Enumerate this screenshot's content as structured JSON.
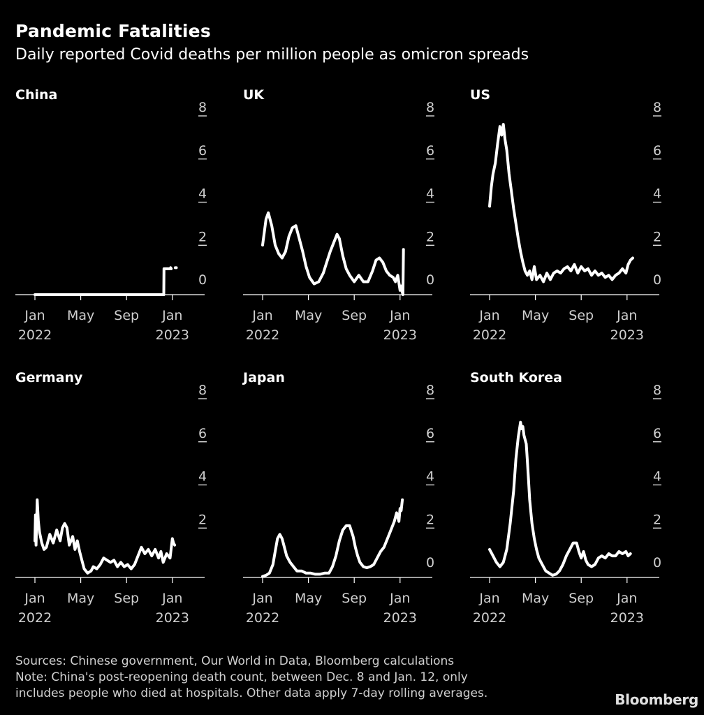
{
  "title": "Pandemic Fatalities",
  "subtitle": "Daily reported Covid deaths per million people as omicron spreads",
  "footer": {
    "sources": "Sources: Chinese government, Our World in Data, Bloomberg calculations",
    "note_line1": "Note: China's post-reopening death count, between Dec. 8 and Jan. 12, only",
    "note_line2": "includes people who died at hospitals. Other data apply 7-day rolling averages."
  },
  "brand": "Bloomberg",
  "colors": {
    "background": "#000000",
    "line": "#ffffff",
    "axis": "#ffffff",
    "tick_text": "#cfcfcf"
  },
  "chart_data": [
    {
      "type": "line",
      "title": "China",
      "xlabel": "",
      "ylabel": "",
      "ylim": [
        0,
        8
      ],
      "yticks": [
        "0",
        "2",
        "4",
        "6",
        "8"
      ],
      "xticks": [
        {
          "month": 0,
          "line1": "Jan",
          "line2": "2022"
        },
        {
          "month": 4,
          "line1": "May",
          "line2": ""
        },
        {
          "month": 8,
          "line1": "Sep",
          "line2": ""
        },
        {
          "month": 12,
          "line1": "Jan",
          "line2": "2023"
        }
      ],
      "series": [
        {
          "name": "China",
          "x": [
            0,
            11.25
          ],
          "y": [
            0,
            0
          ]
        },
        {
          "name": "China (post-reopening)",
          "x": [
            11.25,
            11.27,
            11.6,
            11.8,
            11.85,
            11.9
          ],
          "y": [
            0,
            1.2,
            1.2,
            1.2,
            1.25,
            1.2
          ]
        },
        {
          "name": "China (latest)",
          "x": [
            12.25,
            12.35
          ],
          "y": [
            1.25,
            1.25
          ]
        }
      ]
    },
    {
      "type": "line",
      "title": "UK",
      "xlabel": "",
      "ylabel": "",
      "ylim": [
        0,
        8
      ],
      "yticks": [
        "0",
        "2",
        "4",
        "6",
        "8"
      ],
      "xticks": [
        {
          "month": 0,
          "line1": "Jan",
          "line2": "2022"
        },
        {
          "month": 4,
          "line1": "May",
          "line2": ""
        },
        {
          "month": 8,
          "line1": "Sep",
          "line2": ""
        },
        {
          "month": 12,
          "line1": "Jan",
          "line2": "2023"
        }
      ],
      "series": [
        {
          "name": "UK",
          "x": [
            0,
            0.3,
            0.5,
            0.8,
            1.1,
            1.4,
            1.7,
            2.0,
            2.3,
            2.6,
            2.9,
            3.2,
            3.5,
            3.8,
            4.1,
            4.5,
            4.9,
            5.3,
            5.6,
            5.9,
            6.2,
            6.5,
            6.7,
            7.0,
            7.3,
            7.6,
            8.0,
            8.4,
            8.8,
            9.2,
            9.6,
            9.9,
            10.2,
            10.5,
            10.8,
            11.1,
            11.4,
            11.6,
            11.8,
            12.0,
            12.1,
            12.2,
            12.25,
            12.3
          ],
          "y": [
            2.3,
            3.5,
            3.8,
            3.2,
            2.3,
            1.9,
            1.7,
            2.0,
            2.7,
            3.1,
            3.2,
            2.6,
            2.0,
            1.3,
            0.8,
            0.5,
            0.6,
            1.0,
            1.5,
            2.0,
            2.4,
            2.8,
            2.6,
            1.8,
            1.2,
            0.9,
            0.6,
            0.9,
            0.6,
            0.6,
            1.1,
            1.6,
            1.7,
            1.5,
            1.1,
            0.9,
            0.8,
            0.6,
            0.9,
            0.2,
            0.4,
            0.1,
            0.0,
            2.1
          ]
        }
      ]
    },
    {
      "type": "line",
      "title": "US",
      "xlabel": "",
      "ylabel": "",
      "ylim": [
        0,
        8
      ],
      "yticks": [
        "0",
        "2",
        "4",
        "6",
        "8"
      ],
      "xticks": [
        {
          "month": 0,
          "line1": "Jan",
          "line2": "2022"
        },
        {
          "month": 4,
          "line1": "May",
          "line2": ""
        },
        {
          "month": 8,
          "line1": "Sep",
          "line2": ""
        },
        {
          "month": 12,
          "line1": "Jan",
          "line2": "2023"
        }
      ],
      "series": [
        {
          "name": "US",
          "x": [
            0,
            0.15,
            0.3,
            0.5,
            0.7,
            0.9,
            1.05,
            1.2,
            1.35,
            1.5,
            1.7,
            1.9,
            2.1,
            2.3,
            2.5,
            2.7,
            2.9,
            3.1,
            3.3,
            3.5,
            3.7,
            3.9,
            4.1,
            4.4,
            4.7,
            5.0,
            5.3,
            5.6,
            5.9,
            6.2,
            6.5,
            6.8,
            7.1,
            7.4,
            7.7,
            8.0,
            8.3,
            8.6,
            8.9,
            9.2,
            9.5,
            9.8,
            10.1,
            10.4,
            10.7,
            11.0,
            11.3,
            11.6,
            11.9,
            12.1,
            12.3,
            12.5
          ],
          "y": [
            4.1,
            5.0,
            5.6,
            6.1,
            7.0,
            7.8,
            7.4,
            7.9,
            7.2,
            6.7,
            5.6,
            4.8,
            4.0,
            3.3,
            2.6,
            2.0,
            1.5,
            1.1,
            0.9,
            1.1,
            0.7,
            1.3,
            0.7,
            0.9,
            0.6,
            1.0,
            0.7,
            1.0,
            1.1,
            1.0,
            1.2,
            1.3,
            1.1,
            1.4,
            1.0,
            1.3,
            1.1,
            1.2,
            0.9,
            1.1,
            0.9,
            1.0,
            0.8,
            0.9,
            0.7,
            0.9,
            1.0,
            1.2,
            1.0,
            1.4,
            1.6,
            1.7
          ]
        }
      ]
    },
    {
      "type": "line",
      "title": "Germany",
      "xlabel": "",
      "ylabel": "",
      "ylim": [
        0,
        8
      ],
      "yticks": [
        "2",
        "4",
        "6",
        "8"
      ],
      "xticks": [
        {
          "month": 0,
          "line1": "Jan",
          "line2": "2022"
        },
        {
          "month": 4,
          "line1": "May",
          "line2": ""
        },
        {
          "month": 8,
          "line1": "Sep",
          "line2": ""
        },
        {
          "month": 12,
          "line1": "Jan",
          "line2": "2023"
        }
      ],
      "series": [
        {
          "name": "Germany",
          "x": [
            0,
            0.05,
            0.1,
            0.2,
            0.3,
            0.4,
            0.6,
            0.8,
            1.0,
            1.3,
            1.6,
            1.9,
            2.2,
            2.4,
            2.6,
            2.8,
            3.0,
            3.3,
            3.5,
            3.7,
            3.9,
            4.1,
            4.3,
            4.6,
            4.9,
            5.1,
            5.4,
            5.7,
            6.0,
            6.3,
            6.6,
            6.9,
            7.2,
            7.5,
            7.8,
            8.1,
            8.4,
            8.7,
            9.0,
            9.3,
            9.6,
            9.9,
            10.2,
            10.5,
            10.8,
            11.0,
            11.2,
            11.5,
            11.8,
            12.0,
            12.1,
            12.2
          ],
          "y": [
            1.7,
            2.9,
            1.5,
            3.6,
            2.6,
            2.1,
            1.6,
            1.3,
            1.4,
            2.0,
            1.6,
            2.2,
            1.7,
            2.3,
            2.5,
            2.3,
            1.5,
            1.9,
            1.3,
            1.7,
            1.2,
            0.8,
            0.4,
            0.2,
            0.3,
            0.5,
            0.4,
            0.6,
            0.9,
            0.8,
            0.7,
            0.8,
            0.5,
            0.7,
            0.5,
            0.6,
            0.4,
            0.6,
            1.0,
            1.4,
            1.1,
            1.3,
            1.0,
            1.3,
            0.9,
            1.2,
            0.7,
            1.1,
            0.9,
            1.8,
            1.6,
            1.5
          ]
        }
      ]
    },
    {
      "type": "line",
      "title": "Japan",
      "xlabel": "",
      "ylabel": "",
      "ylim": [
        0,
        8
      ],
      "yticks": [
        "0",
        "2",
        "4",
        "6",
        "8"
      ],
      "xticks": [
        {
          "month": 0,
          "line1": "Jan",
          "line2": "2022"
        },
        {
          "month": 4,
          "line1": "May",
          "line2": ""
        },
        {
          "month": 8,
          "line1": "Sep",
          "line2": ""
        },
        {
          "month": 12,
          "line1": "Jan",
          "line2": "2023"
        }
      ],
      "series": [
        {
          "name": "Japan",
          "x": [
            0,
            0.3,
            0.6,
            0.9,
            1.1,
            1.3,
            1.5,
            1.7,
            1.9,
            2.1,
            2.4,
            2.7,
            3.0,
            3.4,
            3.8,
            4.2,
            4.6,
            5.0,
            5.4,
            5.8,
            6.1,
            6.4,
            6.7,
            7.0,
            7.3,
            7.6,
            7.9,
            8.1,
            8.3,
            8.5,
            8.8,
            9.1,
            9.4,
            9.7,
            10.0,
            10.3,
            10.6,
            10.9,
            11.2,
            11.5,
            11.7,
            11.9,
            12.0,
            12.1,
            12.2
          ],
          "y": [
            0.05,
            0.1,
            0.2,
            0.6,
            1.2,
            1.8,
            2.0,
            1.8,
            1.4,
            1.0,
            0.7,
            0.5,
            0.3,
            0.3,
            0.2,
            0.2,
            0.15,
            0.15,
            0.2,
            0.2,
            0.5,
            1.0,
            1.7,
            2.2,
            2.4,
            2.4,
            1.9,
            1.4,
            1.0,
            0.7,
            0.5,
            0.45,
            0.5,
            0.6,
            0.9,
            1.2,
            1.4,
            1.8,
            2.2,
            2.6,
            3.0,
            2.6,
            3.2,
            3.1,
            3.6
          ]
        }
      ]
    },
    {
      "type": "line",
      "title": "South Korea",
      "xlabel": "",
      "ylabel": "",
      "ylim": [
        0,
        8
      ],
      "yticks": [
        "0",
        "2",
        "4",
        "6",
        "8"
      ],
      "xticks": [
        {
          "month": 0,
          "line1": "Jan",
          "line2": "2022"
        },
        {
          "month": 4,
          "line1": "May",
          "line2": ""
        },
        {
          "month": 8,
          "line1": "Sep",
          "line2": ""
        },
        {
          "month": 12,
          "line1": "Jan",
          "line2": "2023"
        }
      ],
      "series": [
        {
          "name": "South Korea",
          "x": [
            0,
            0.3,
            0.6,
            0.9,
            1.2,
            1.5,
            1.8,
            2.1,
            2.3,
            2.5,
            2.7,
            2.8,
            2.9,
            3.0,
            3.1,
            3.2,
            3.3,
            3.4,
            3.5,
            3.7,
            3.9,
            4.1,
            4.3,
            4.6,
            4.9,
            5.2,
            5.5,
            5.8,
            6.1,
            6.4,
            6.7,
            7.0,
            7.3,
            7.6,
            7.8,
            8.0,
            8.2,
            8.4,
            8.6,
            8.9,
            9.2,
            9.5,
            9.8,
            10.1,
            10.4,
            10.7,
            11.0,
            11.3,
            11.6,
            11.9,
            12.1,
            12.3
          ],
          "y": [
            1.3,
            1.0,
            0.7,
            0.5,
            0.7,
            1.3,
            2.5,
            4.0,
            5.5,
            6.5,
            7.2,
            6.9,
            7.0,
            6.6,
            6.4,
            6.2,
            5.4,
            4.5,
            3.6,
            2.5,
            1.8,
            1.3,
            0.9,
            0.6,
            0.3,
            0.2,
            0.1,
            0.15,
            0.3,
            0.6,
            1.0,
            1.3,
            1.6,
            1.6,
            1.2,
            0.9,
            1.2,
            0.8,
            0.6,
            0.5,
            0.6,
            0.9,
            1.0,
            0.9,
            1.1,
            1.0,
            1.0,
            1.2,
            1.1,
            1.2,
            1.0,
            1.1
          ]
        }
      ]
    }
  ]
}
